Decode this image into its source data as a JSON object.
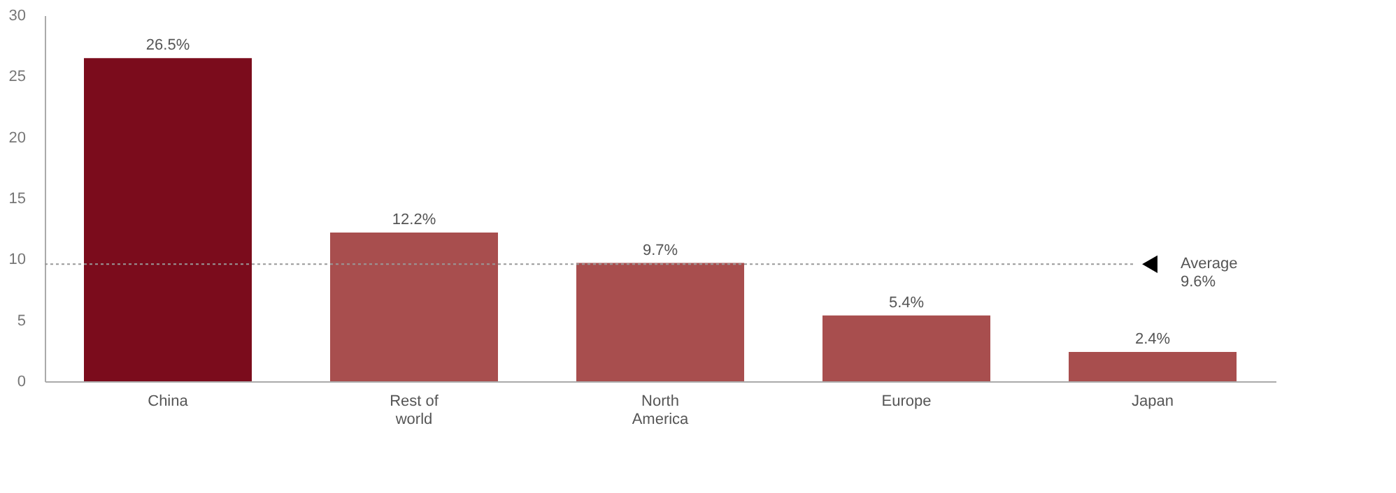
{
  "chart_data": {
    "type": "bar",
    "categories": [
      "China",
      "Rest of\nworld",
      "North\nAmerica",
      "Europe",
      "Japan"
    ],
    "values": [
      26.5,
      12.2,
      9.7,
      5.4,
      2.4
    ],
    "colors": [
      "#7b0c1c",
      "#a84e4e",
      "#a84e4e",
      "#a84e4e",
      "#a84e4e"
    ],
    "value_labels": [
      "26.5%",
      "12.2%",
      "9.7%",
      "5.4%",
      "2.4%"
    ],
    "ylim": [
      0,
      30
    ],
    "yticks": [
      0,
      5,
      10,
      15,
      20,
      25,
      30
    ],
    "grid": false,
    "ref_lines": [
      {
        "axis": "y",
        "value": 9.6,
        "label": "Average\n9.6%",
        "color": "#999999",
        "line_style": "dotted"
      }
    ]
  }
}
